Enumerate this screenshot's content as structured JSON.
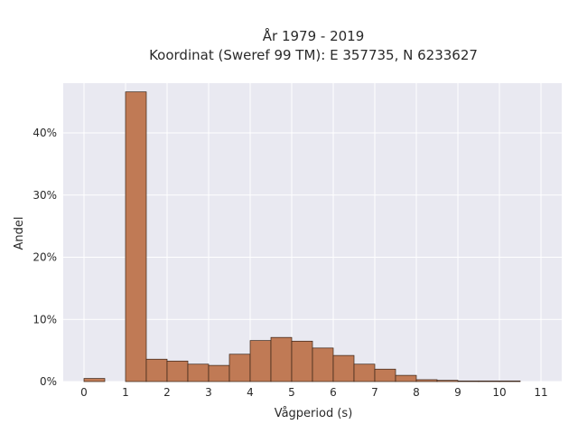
{
  "chart_data": {
    "type": "bar",
    "title_line1": "År 1979 - 2019",
    "title_line2": "Koordinat (Sweref 99 TM): E 357735, N 6233627",
    "xlabel": "Vågperiod (s)",
    "ylabel": "Andel",
    "xlim": [
      -0.5,
      11.5
    ],
    "ylim": [
      0,
      48
    ],
    "bin_width": 0.5,
    "x_ticks": [
      "0",
      "1",
      "2",
      "3",
      "4",
      "5",
      "6",
      "7",
      "8",
      "9",
      "10",
      "11"
    ],
    "y_ticks": [
      "0%",
      "10%",
      "20%",
      "30%",
      "40%"
    ],
    "bins": [
      {
        "x0": 0.0,
        "value": 0.5
      },
      {
        "x0": 0.5,
        "value": 0.0
      },
      {
        "x0": 1.0,
        "value": 46.6
      },
      {
        "x0": 1.5,
        "value": 3.6
      },
      {
        "x0": 2.0,
        "value": 3.3
      },
      {
        "x0": 2.5,
        "value": 2.8
      },
      {
        "x0": 3.0,
        "value": 2.6
      },
      {
        "x0": 3.5,
        "value": 4.4
      },
      {
        "x0": 4.0,
        "value": 6.6
      },
      {
        "x0": 4.5,
        "value": 7.1
      },
      {
        "x0": 5.0,
        "value": 6.5
      },
      {
        "x0": 5.5,
        "value": 5.4
      },
      {
        "x0": 6.0,
        "value": 4.2
      },
      {
        "x0": 6.5,
        "value": 2.8
      },
      {
        "x0": 7.0,
        "value": 2.0
      },
      {
        "x0": 7.5,
        "value": 1.0
      },
      {
        "x0": 8.0,
        "value": 0.3
      },
      {
        "x0": 8.5,
        "value": 0.2
      },
      {
        "x0": 9.0,
        "value": 0.1
      },
      {
        "x0": 9.5,
        "value": 0.1
      },
      {
        "x0": 10.0,
        "value": 0.1
      }
    ],
    "grid": true,
    "colors": {
      "bar_fill": "#c07a55",
      "bar_edge": "#3a2418",
      "plot_bg": "#e9e9f1",
      "grid": "#ffffff"
    }
  }
}
